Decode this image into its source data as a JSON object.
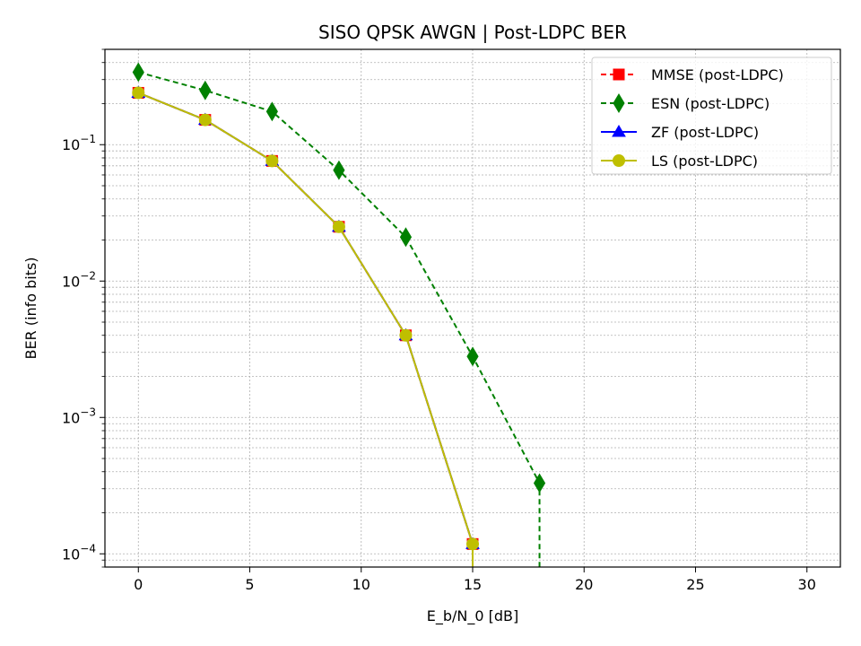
{
  "chart_data": {
    "type": "line",
    "title": "SISO QPSK AWGN | Post-LDPC BER",
    "xlabel": "E_b/N_0 [dB]",
    "ylabel": "BER (info bits)",
    "xlim": [
      -1.5,
      31.5
    ],
    "ylim": [
      8e-05,
      0.5
    ],
    "yscale": "log",
    "grid": true,
    "legend_position": "top-right",
    "x_ticks": [
      0,
      5,
      10,
      15,
      20,
      25,
      30
    ],
    "x_tick_labels": [
      "0",
      "5",
      "10",
      "15",
      "20",
      "25",
      "30"
    ],
    "y_ticks": [
      0.0001,
      0.001,
      0.01,
      0.1
    ],
    "y_tick_labels": [
      {
        "base": "10",
        "exp": "−4"
      },
      {
        "base": "10",
        "exp": "−3"
      },
      {
        "base": "10",
        "exp": "−2"
      },
      {
        "base": "10",
        "exp": "−1"
      }
    ],
    "series": [
      {
        "name": "MMSE (post-LDPC)",
        "color": "#ff0000",
        "marker": "square",
        "dashed": true,
        "x": [
          0,
          3,
          6,
          9,
          12,
          15
        ],
        "y": [
          0.24,
          0.152,
          0.076,
          0.025,
          0.004,
          0.000118
        ],
        "drop_to_zero_after": 15
      },
      {
        "name": "ESN (post-LDPC)",
        "color": "#008000",
        "marker": "diamond",
        "dashed": true,
        "x": [
          0,
          3,
          6,
          9,
          12,
          15,
          18
        ],
        "y": [
          0.34,
          0.25,
          0.175,
          0.065,
          0.021,
          0.0028,
          0.00033
        ],
        "drop_to_zero_after": 18
      },
      {
        "name": "ZF (post-LDPC)",
        "color": "#0000ff",
        "marker": "triangle",
        "dashed": false,
        "x": [
          0,
          3,
          6,
          9,
          12,
          15
        ],
        "y": [
          0.24,
          0.152,
          0.076,
          0.025,
          0.004,
          0.000118
        ],
        "drop_to_zero_after": 15
      },
      {
        "name": "LS (post-LDPC)",
        "color": "#bfbf00",
        "marker": "circle",
        "dashed": false,
        "x": [
          0,
          3,
          6,
          9,
          12,
          15
        ],
        "y": [
          0.24,
          0.152,
          0.076,
          0.025,
          0.004,
          0.000118
        ],
        "drop_to_zero_after": 15
      }
    ]
  }
}
